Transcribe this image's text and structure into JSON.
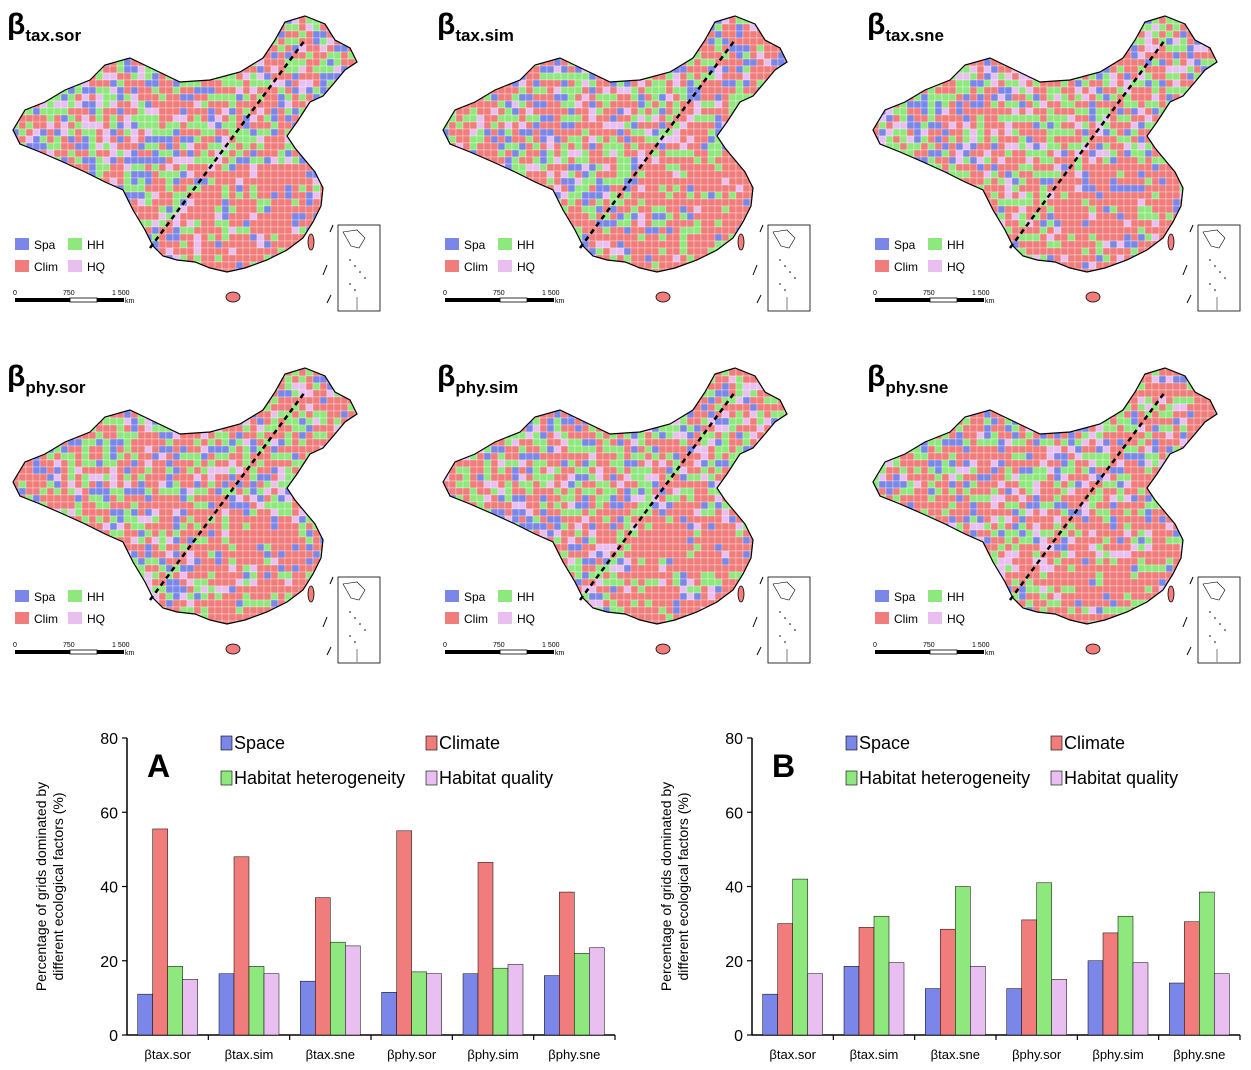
{
  "colors": {
    "space": "#7a86e8",
    "climate": "#f07d7b",
    "hh": "#8fe87d",
    "hq": "#e8bff0",
    "outline": "#000000"
  },
  "maps": [
    {
      "title_main": "β",
      "title_sub": "tax.sor"
    },
    {
      "title_main": "β",
      "title_sub": "tax.sim"
    },
    {
      "title_main": "β",
      "title_sub": "tax.sne"
    },
    {
      "title_main": "β",
      "title_sub": "phy.sor"
    },
    {
      "title_main": "β",
      "title_sub": "phy.sim"
    },
    {
      "title_main": "β",
      "title_sub": "phy.sne"
    }
  ],
  "map_legend": {
    "spa": "Spa",
    "hh": "HH",
    "clim": "Clim",
    "hq": "HQ"
  },
  "scale": {
    "zero": "0",
    "mid": "750",
    "end": "1 500",
    "unit": "km"
  },
  "chart_data": [
    {
      "type": "bar",
      "panel_label": "A",
      "categories": [
        "βtax.sor",
        "βtax.sim",
        "βtax.sne",
        "βphy.sor",
        "βphy.sim",
        "βphy.sne"
      ],
      "series": [
        {
          "name": "Space",
          "values": [
            11,
            16.5,
            14.5,
            11.5,
            16.5,
            16
          ]
        },
        {
          "name": "Climate",
          "values": [
            55.5,
            48,
            37,
            55,
            46.5,
            38.5
          ]
        },
        {
          "name": "Habitat heterogeneity",
          "values": [
            18.5,
            18.5,
            25,
            17,
            18,
            22
          ]
        },
        {
          "name": "Habitat quality",
          "values": [
            15,
            16.5,
            24,
            16.5,
            19,
            23.5
          ]
        }
      ],
      "ylabel": "Percentage of grids dominated by different ecological factors (%)",
      "ylim": [
        0,
        80
      ],
      "yticks": [
        0,
        20,
        40,
        60,
        80
      ]
    },
    {
      "type": "bar",
      "panel_label": "B",
      "categories": [
        "βtax.sor",
        "βtax.sim",
        "βtax.sne",
        "βphy.sor",
        "βphy.sim",
        "βphy.sne"
      ],
      "series": [
        {
          "name": "Space",
          "values": [
            11,
            18.5,
            12.5,
            12.5,
            20,
            14
          ]
        },
        {
          "name": "Climate",
          "values": [
            30,
            29,
            28.5,
            31,
            27.5,
            30.5
          ]
        },
        {
          "name": "Habitat heterogeneity",
          "values": [
            42,
            32,
            40,
            41,
            32,
            38.5
          ]
        },
        {
          "name": "Habitat quality",
          "values": [
            16.5,
            19.5,
            18.5,
            15,
            19.5,
            16.5
          ]
        }
      ],
      "ylabel": "Percentage of grids dominated by different ecological factors (%)",
      "ylim": [
        0,
        80
      ],
      "yticks": [
        0,
        20,
        40,
        60,
        80
      ]
    }
  ]
}
